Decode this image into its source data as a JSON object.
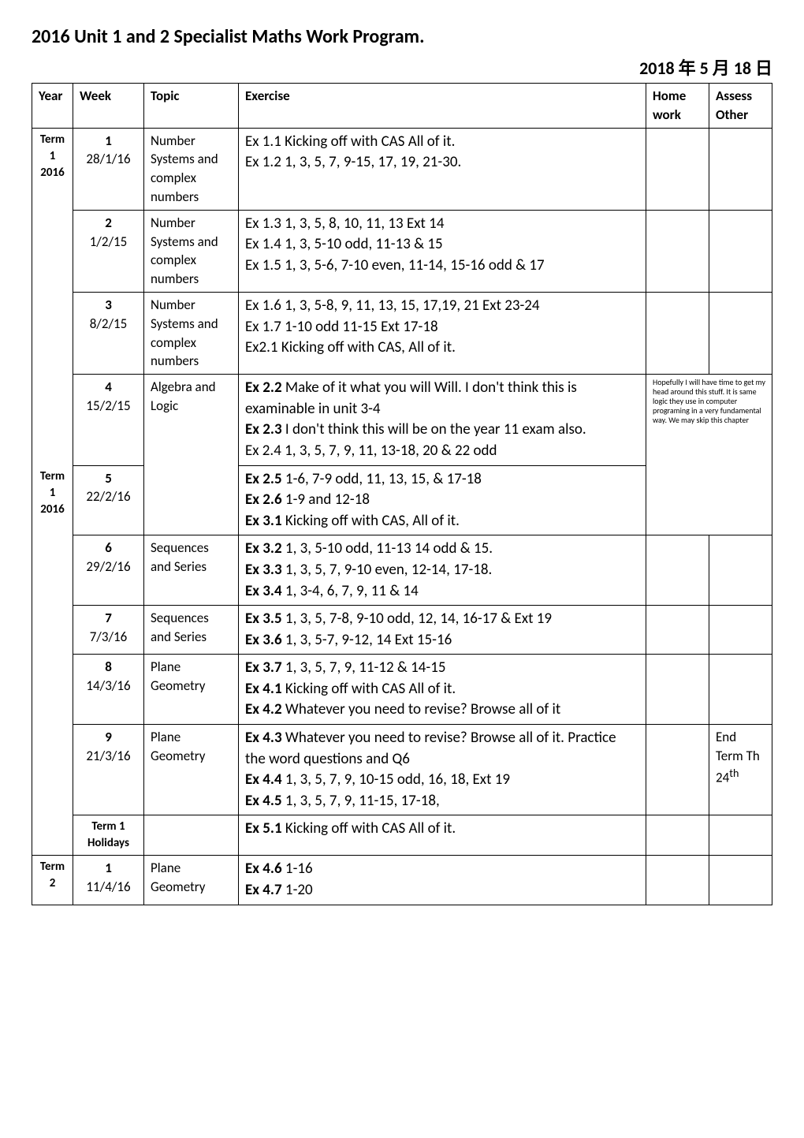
{
  "title": "2016 Unit 1 and 2 Specialist Maths Work Program.",
  "date": "2018 年 5 月 18 日",
  "headers": {
    "year": "Year",
    "week": "Week",
    "topic": "Topic",
    "exercise": "Exercise",
    "home": "Home work",
    "assess": "Assess Other"
  },
  "term1_label": "Term 1 2016",
  "term1b_label": "Term 1 2016",
  "term2_label": "Term 2",
  "rows": {
    "r1": {
      "week_b": "1",
      "week_d": "28/1/16",
      "topic": "Number Systems and complex numbers",
      "ex1": "Ex 1.1 Kicking off with CAS All of it.",
      "ex2": "Ex 1.2 1, 3, 5, 7, 9-15, 17, 19, 21-30."
    },
    "r2": {
      "week_b": "2",
      "week_d": "1/2/15",
      "topic": "Number Systems and complex numbers",
      "ex1": "Ex 1.3 1, 3, 5, 8, 10, 11, 13 Ext 14",
      "ex2": "Ex 1.4 1, 3, 5-10 odd, 11-13 & 15",
      "ex3": "Ex 1.5 1, 3, 5-6, 7-10 even, 11-14, 15-16 odd & 17"
    },
    "r3": {
      "week_b": "3",
      "week_d": "8/2/15",
      "topic": "Number Systems and complex numbers",
      "ex1": "Ex 1.6 1, 3, 5-8, 9, 11, 13, 15, 17,19, 21 Ext 23-24",
      "ex2": "Ex 1.7 1-10 odd 11-15 Ext 17-18",
      "ex3": "Ex2.1 Kicking off with CAS, All of it."
    },
    "r4": {
      "week_b": "4",
      "week_d": "15/2/15",
      "topic": "Algebra and Logic",
      "ex1a": "Ex 2.2",
      "ex1b": " Make of it what you will Will. I don't think this is examinable in unit 3-4",
      "ex2a": "Ex 2.3",
      "ex2b": " I don't think this will be on the year 11 exam also.",
      "ex3": "Ex 2.4 1, 3, 5, 7, 9, 11, 13-18, 20 & 22 odd",
      "note": "Hopefully I will have time to get my head around this stuff. It is same logic they use in computer programing in a very fundamental way. We may skip this chapter"
    },
    "r5": {
      "week_b": "5",
      "week_d": "22/2/16",
      "ex1a": "Ex 2.5",
      "ex1b": " 1-6, 7-9 odd, 11, 13, 15, & 17-18",
      "ex2a": "Ex 2.6",
      "ex2b": " 1-9 and 12-18",
      "ex3a": "Ex 3.1",
      "ex3b": " Kicking off with CAS, All of it."
    },
    "r6": {
      "week_b": "6",
      "week_d": "29/2/16",
      "topic": "Sequences and Series",
      "ex1a": "Ex 3.2",
      "ex1b": " 1, 3, 5-10 odd, 11-13 14 odd & 15.",
      "ex2a": "Ex 3.3",
      "ex2b": " 1, 3, 5, 7, 9-10 even, 12-14, 17-18.",
      "ex3a": "Ex 3.4",
      "ex3b": " 1, 3-4, 6, 7, 9, 11 & 14"
    },
    "r7": {
      "week_b": "7",
      "week_d": "7/3/16",
      "topic": "Sequences and Series",
      "ex1a": "Ex 3.5",
      "ex1b": " 1, 3, 5, 7-8, 9-10 odd, 12, 14, 16-17 & Ext 19",
      "ex2a": "Ex 3.6",
      "ex2b": " 1, 3, 5-7, 9-12, 14 Ext 15-16"
    },
    "r8": {
      "week_b": "8",
      "week_d": "14/3/16",
      "topic": "Plane Geometry",
      "ex1a": "Ex 3.7",
      "ex1b": " 1, 3, 5, 7, 9, 11-12 & 14-15",
      "ex2a": "Ex 4.1",
      "ex2b": " Kicking off with CAS All of it.",
      "ex3a": "Ex 4.2",
      "ex3b": " Whatever you need to revise? Browse all of it"
    },
    "r9": {
      "week_b": "9",
      "week_d": "21/3/16",
      "topic": "Plane Geometry",
      "ex1a": "Ex 4.3",
      "ex1b": " Whatever you need to revise? Browse all of it. Practice the word questions and Q6",
      "ex2a": "Ex 4.4",
      "ex2b": " 1, 3, 5, 7, 9, 10-15 odd, 16, 18, Ext 19",
      "ex3a": "Ex 4.5",
      "ex3b": " 1, 3, 5, 7, 9, 11-15, 17-18,",
      "assess1": "End Term Th 24",
      "assess_sup": "th"
    },
    "holiday": {
      "week": "Term 1 Holidays",
      "ex1a": "Ex 5.1",
      "ex1b": " Kicking off with CAS All of it."
    },
    "r10": {
      "week_b": "1",
      "week_d": "11/4/16",
      "topic": "Plane Geometry",
      "ex1a": "Ex 4.6",
      "ex1b": " 1-16",
      "ex2a": "Ex 4.7",
      "ex2b": " 1-20"
    }
  }
}
